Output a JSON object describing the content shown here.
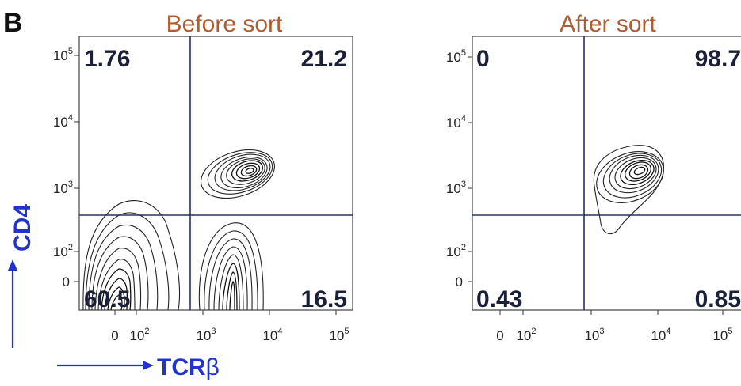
{
  "panel_label": "B",
  "x_axis_title_prefix": "TCR",
  "x_axis_title_greek": "β",
  "y_axis_title": "CD4",
  "colors": {
    "title": "#b35a2e",
    "axis_title": "#2233cc",
    "quadrant_text": "#1a1f3a",
    "gate": "#27306a"
  },
  "chart_data": [
    {
      "type": "contour",
      "title": "Before sort",
      "xlabel": "TCRβ",
      "ylabel": "CD4",
      "scale": "biexponential",
      "x_ticks": [
        {
          "base": "0",
          "exp": ""
        },
        {
          "base": "10",
          "exp": "2"
        },
        {
          "base": "10",
          "exp": "3"
        },
        {
          "base": "10",
          "exp": "4"
        },
        {
          "base": "10",
          "exp": "5"
        }
      ],
      "y_ticks": [
        {
          "base": "0",
          "exp": ""
        },
        {
          "base": "10",
          "exp": "2"
        },
        {
          "base": "10",
          "exp": "3"
        },
        {
          "base": "10",
          "exp": "4"
        },
        {
          "base": "10",
          "exp": "5"
        }
      ],
      "quadrants": {
        "upper_left": "1.76",
        "upper_right": "21.2",
        "lower_left": "60.5",
        "lower_right": "16.5"
      }
    },
    {
      "type": "contour",
      "title": "After sort",
      "xlabel": "TCRβ",
      "ylabel": "CD4",
      "scale": "biexponential",
      "x_ticks": [
        {
          "base": "0",
          "exp": ""
        },
        {
          "base": "10",
          "exp": "2"
        },
        {
          "base": "10",
          "exp": "3"
        },
        {
          "base": "10",
          "exp": "4"
        },
        {
          "base": "10",
          "exp": "5"
        }
      ],
      "y_ticks": [
        {
          "base": "0",
          "exp": ""
        },
        {
          "base": "10",
          "exp": "2"
        },
        {
          "base": "10",
          "exp": "3"
        },
        {
          "base": "10",
          "exp": "4"
        },
        {
          "base": "10",
          "exp": "5"
        }
      ],
      "quadrants": {
        "upper_left": "0",
        "upper_right": "98.7",
        "lower_left": "0.43",
        "lower_right": "0.85"
      }
    }
  ]
}
